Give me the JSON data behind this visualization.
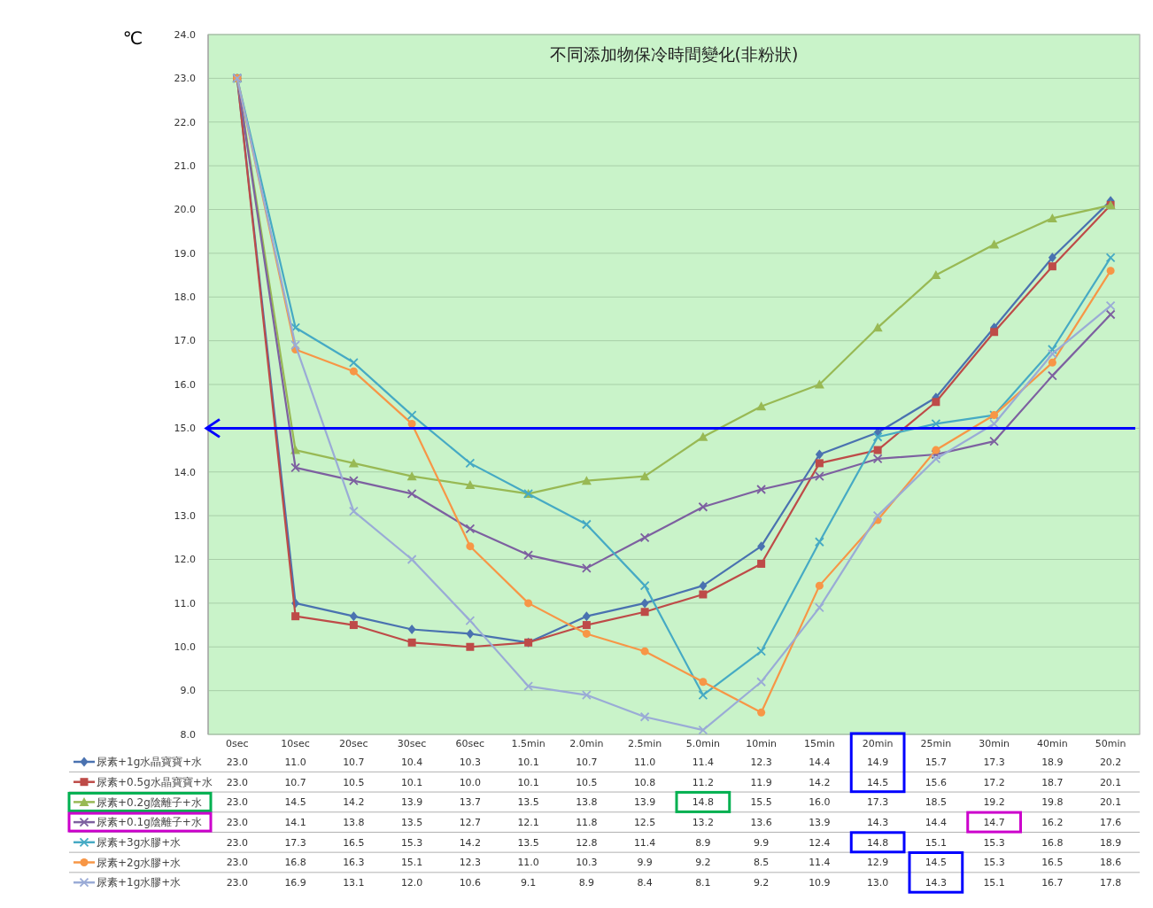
{
  "chart_data": {
    "type": "line",
    "title": "不同添加物保冷時間變化(非粉狀)",
    "ylabel": "℃",
    "categories": [
      "0sec",
      "10sec",
      "20sec",
      "30sec",
      "60sec",
      "1.5min",
      "2.0min",
      "2.5min",
      "5.0min",
      "10min",
      "15min",
      "20min",
      "25min",
      "30min",
      "40min",
      "50min"
    ],
    "series": [
      {
        "name": "尿素+1g水晶寶寶+水",
        "color": "#4a72b0",
        "marker": "diamond",
        "values": [
          23.0,
          11.0,
          10.7,
          10.4,
          10.3,
          10.1,
          10.7,
          11.0,
          11.4,
          12.3,
          14.4,
          14.9,
          15.7,
          17.3,
          18.9,
          20.2
        ],
        "value_labels": [
          "23.0",
          "11.0",
          "10.7",
          "10.4",
          "10.3",
          "10.1",
          "10.7",
          "11.0",
          "11.4",
          "12.3",
          "14.4",
          "14.9",
          "15.7",
          "17.3",
          "18.9",
          "20.2"
        ]
      },
      {
        "name": "尿素+0.5g水晶寶寶+水",
        "color": "#be4b48",
        "marker": "square",
        "values": [
          23.0,
          10.7,
          10.5,
          10.1,
          10.0,
          10.1,
          10.5,
          10.8,
          11.2,
          11.9,
          14.2,
          14.5,
          15.6,
          17.2,
          18.7,
          20.1
        ],
        "value_labels": [
          "23.0",
          "10.7",
          "10.5",
          "10.1",
          "10.0",
          "10.1",
          "10.5",
          "10.8",
          "11.2",
          "11.9",
          "14.2",
          "14.5",
          "15.6",
          "17.2",
          "18.7",
          "20.1"
        ]
      },
      {
        "name": "尿素+0.2g陰離子+水",
        "color": "#98b954",
        "marker": "triangle",
        "values": [
          23.0,
          14.5,
          14.2,
          13.9,
          13.7,
          13.5,
          13.8,
          13.9,
          14.8,
          15.5,
          16.0,
          17.3,
          18.5,
          19.2,
          19.8,
          20.1
        ],
        "value_labels": [
          "23.0",
          "14.5",
          "14.2",
          "13.9",
          "13.7",
          "13.5",
          "13.8",
          "13.9",
          "14.8",
          "15.5",
          "16.0",
          "17.3",
          "18.5",
          "19.2",
          "19.8",
          "20.1"
        ]
      },
      {
        "name": "尿素+0.1g陰離子+水",
        "color": "#7d60a0",
        "marker": "cross",
        "values": [
          23.0,
          14.1,
          13.8,
          13.5,
          12.7,
          12.1,
          11.8,
          12.5,
          13.2,
          13.6,
          13.9,
          14.3,
          14.4,
          14.7,
          16.2,
          17.6
        ],
        "value_labels": [
          "23.0",
          "14.1",
          "13.8",
          "13.5",
          "12.7",
          "12.1",
          "11.8",
          "12.5",
          "13.2",
          "13.6",
          "13.9",
          "14.3",
          "14.4",
          "14.7",
          "16.2",
          "17.6"
        ]
      },
      {
        "name": "尿素+3g水膠+水",
        "color": "#46aac4",
        "marker": "cross",
        "values": [
          23.0,
          17.3,
          16.5,
          15.3,
          14.2,
          13.5,
          12.8,
          11.4,
          8.9,
          9.9,
          12.4,
          14.8,
          15.1,
          15.3,
          16.8,
          18.9
        ],
        "value_labels": [
          "23.0",
          "17.3",
          "16.5",
          "15.3",
          "14.2",
          "13.5",
          "12.8",
          "11.4",
          "8.9",
          "9.9",
          "12.4",
          "14.8",
          "15.1",
          "15.3",
          "16.8",
          "18.9"
        ]
      },
      {
        "name": "尿素+2g水膠+水",
        "color": "#f79646",
        "marker": "circle",
        "values": [
          23.0,
          16.8,
          16.3,
          15.1,
          12.3,
          11.0,
          10.3,
          9.9,
          9.2,
          8.5,
          11.4,
          12.9,
          14.5,
          15.3,
          16.5,
          18.6
        ],
        "value_labels": [
          "23.0",
          "16.8",
          "16.3",
          "15.1",
          "12.3",
          "11.0",
          "10.3",
          "9.9",
          "9.2",
          "8.5",
          "11.4",
          "12.9",
          "14.5",
          "15.3",
          "16.5",
          "18.6"
        ]
      },
      {
        "name": "尿素+1g水膠+水",
        "color": "#9aabd6",
        "marker": "cross",
        "values": [
          23.0,
          16.9,
          13.1,
          12.0,
          10.6,
          9.1,
          8.9,
          8.4,
          8.1,
          9.2,
          10.9,
          13.0,
          14.3,
          15.1,
          16.7,
          17.8
        ],
        "value_labels": [
          "23.0",
          "16.9",
          "13.1",
          "12.0",
          "10.6",
          "9.1",
          "8.9",
          "8.4",
          "8.1",
          "9.2",
          "10.9",
          "13.0",
          "14.3",
          "15.1",
          "16.7",
          "17.8"
        ]
      }
    ],
    "ylim": [
      8,
      24
    ],
    "yticks": [
      {
        "value": 8,
        "label": "8.0"
      },
      {
        "value": 9,
        "label": "9.0"
      },
      {
        "value": 10,
        "label": "10.0"
      },
      {
        "value": 11,
        "label": "11.0"
      },
      {
        "value": 12,
        "label": "12.0"
      },
      {
        "value": 13,
        "label": "13.0"
      },
      {
        "value": 14,
        "label": "14.0"
      },
      {
        "value": 15,
        "label": "15.0"
      },
      {
        "value": 16,
        "label": "16.0"
      },
      {
        "value": 17,
        "label": "17.0"
      },
      {
        "value": 18,
        "label": "18.0"
      },
      {
        "value": 19,
        "label": "19.0"
      },
      {
        "value": 20,
        "label": "20.0"
      },
      {
        "value": 21,
        "label": "21.0"
      },
      {
        "value": 22,
        "label": "22.0"
      },
      {
        "value": 23,
        "label": "23.0"
      },
      {
        "value": 24,
        "label": "24.0"
      }
    ],
    "grid": "y",
    "legend": "bottom",
    "ref_lines": [
      {
        "axis": "y",
        "value": 15,
        "color": "#0000ff"
      }
    ]
  }
}
